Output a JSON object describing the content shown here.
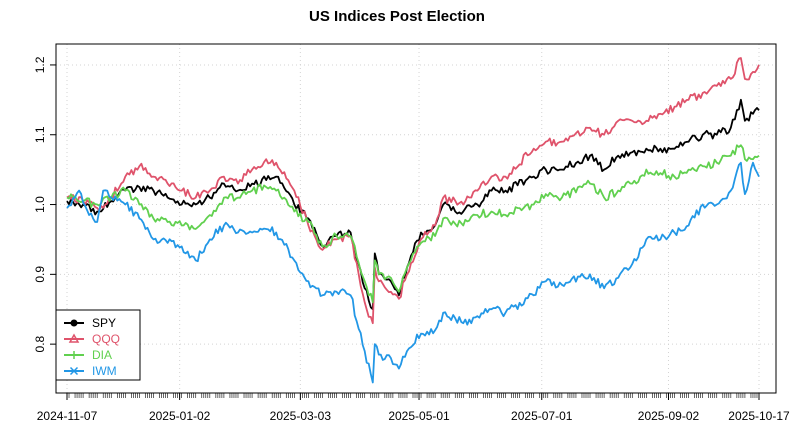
{
  "chart_data": {
    "type": "line",
    "title": "US Indices Post Election",
    "xlabel": "",
    "ylabel": "",
    "ylim": [
      0.73,
      1.23
    ],
    "grid": true,
    "legend_position": "bottom-left",
    "x_start": "2024-11-07",
    "x_end": "2025-10-17",
    "x_ticks": [
      "2024-11-07",
      "2025-01-02",
      "2025-03-03",
      "2025-05-01",
      "2025-07-01",
      "2025-09-02",
      "2025-10-17"
    ],
    "y_ticks": [
      0.8,
      0.9,
      1.0,
      1.1,
      1.2
    ],
    "y_tick_labels": [
      "0.8",
      "0.9",
      "1.0",
      "1.1",
      "1.2"
    ],
    "series": [
      {
        "name": "SPY",
        "color": "#000000",
        "marker": "circle",
        "points": [
          [
            "2024-11-07",
            1.005
          ],
          [
            "2024-11-15",
            1.0
          ],
          [
            "2024-11-22",
            0.99
          ],
          [
            "2024-11-29",
            1.005
          ],
          [
            "2024-12-06",
            1.02
          ],
          [
            "2024-12-13",
            1.025
          ],
          [
            "2024-12-20",
            1.02
          ],
          [
            "2024-12-27",
            1.01
          ],
          [
            "2025-01-03",
            1.0
          ],
          [
            "2025-01-10",
            1.0
          ],
          [
            "2025-01-17",
            1.01
          ],
          [
            "2025-01-24",
            1.03
          ],
          [
            "2025-01-31",
            1.02
          ],
          [
            "2025-02-07",
            1.03
          ],
          [
            "2025-02-14",
            1.035
          ],
          [
            "2025-02-19",
            1.04
          ],
          [
            "2025-02-28",
            1.0
          ],
          [
            "2025-03-07",
            0.98
          ],
          [
            "2025-03-14",
            0.94
          ],
          [
            "2025-03-21",
            0.955
          ],
          [
            "2025-03-28",
            0.96
          ],
          [
            "2025-04-04",
            0.88
          ],
          [
            "2025-04-08",
            0.85
          ],
          [
            "2025-04-09",
            0.93
          ],
          [
            "2025-04-11",
            0.9
          ],
          [
            "2025-04-17",
            0.89
          ],
          [
            "2025-04-21",
            0.87
          ],
          [
            "2025-04-25",
            0.91
          ],
          [
            "2025-05-02",
            0.96
          ],
          [
            "2025-05-09",
            0.97
          ],
          [
            "2025-05-13",
            1.0
          ],
          [
            "2025-05-23",
            0.99
          ],
          [
            "2025-05-30",
            1.0
          ],
          [
            "2025-06-06",
            1.02
          ],
          [
            "2025-06-13",
            1.02
          ],
          [
            "2025-06-27",
            1.04
          ],
          [
            "2025-07-03",
            1.05
          ],
          [
            "2025-07-11",
            1.05
          ],
          [
            "2025-07-25",
            1.07
          ],
          [
            "2025-08-01",
            1.05
          ],
          [
            "2025-08-08",
            1.07
          ],
          [
            "2025-08-15",
            1.075
          ],
          [
            "2025-08-22",
            1.08
          ],
          [
            "2025-08-29",
            1.08
          ],
          [
            "2025-09-05",
            1.08
          ],
          [
            "2025-09-12",
            1.09
          ],
          [
            "2025-09-19",
            1.1
          ],
          [
            "2025-09-26",
            1.1
          ],
          [
            "2025-10-03",
            1.11
          ],
          [
            "2025-10-08",
            1.15
          ],
          [
            "2025-10-10",
            1.12
          ],
          [
            "2025-10-14",
            1.13
          ],
          [
            "2025-10-17",
            1.135
          ]
        ]
      },
      {
        "name": "QQQ",
        "color": "#DF536B",
        "marker": "triangle",
        "points": [
          [
            "2024-11-07",
            1.01
          ],
          [
            "2024-11-15",
            1.005
          ],
          [
            "2024-11-22",
            0.995
          ],
          [
            "2024-11-29",
            1.01
          ],
          [
            "2024-12-06",
            1.04
          ],
          [
            "2024-12-13",
            1.055
          ],
          [
            "2024-12-20",
            1.04
          ],
          [
            "2024-12-27",
            1.03
          ],
          [
            "2025-01-03",
            1.02
          ],
          [
            "2025-01-10",
            1.01
          ],
          [
            "2025-01-17",
            1.02
          ],
          [
            "2025-01-24",
            1.04
          ],
          [
            "2025-01-31",
            1.03
          ],
          [
            "2025-02-07",
            1.05
          ],
          [
            "2025-02-14",
            1.065
          ],
          [
            "2025-02-19",
            1.06
          ],
          [
            "2025-02-28",
            1.02
          ],
          [
            "2025-03-07",
            0.97
          ],
          [
            "2025-03-14",
            0.935
          ],
          [
            "2025-03-21",
            0.95
          ],
          [
            "2025-03-28",
            0.955
          ],
          [
            "2025-04-04",
            0.86
          ],
          [
            "2025-04-08",
            0.83
          ],
          [
            "2025-04-09",
            0.91
          ],
          [
            "2025-04-11",
            0.89
          ],
          [
            "2025-04-17",
            0.875
          ],
          [
            "2025-04-21",
            0.865
          ],
          [
            "2025-04-25",
            0.9
          ],
          [
            "2025-05-02",
            0.95
          ],
          [
            "2025-05-09",
            0.97
          ],
          [
            "2025-05-13",
            1.01
          ],
          [
            "2025-05-23",
            1.0
          ],
          [
            "2025-05-30",
            1.02
          ],
          [
            "2025-06-06",
            1.04
          ],
          [
            "2025-06-13",
            1.04
          ],
          [
            "2025-06-27",
            1.08
          ],
          [
            "2025-07-03",
            1.09
          ],
          [
            "2025-07-11",
            1.09
          ],
          [
            "2025-07-25",
            1.11
          ],
          [
            "2025-08-01",
            1.1
          ],
          [
            "2025-08-08",
            1.12
          ],
          [
            "2025-08-15",
            1.12
          ],
          [
            "2025-08-22",
            1.12
          ],
          [
            "2025-08-29",
            1.13
          ],
          [
            "2025-09-05",
            1.14
          ],
          [
            "2025-09-12",
            1.15
          ],
          [
            "2025-09-19",
            1.16
          ],
          [
            "2025-09-26",
            1.17
          ],
          [
            "2025-10-03",
            1.18
          ],
          [
            "2025-10-08",
            1.21
          ],
          [
            "2025-10-10",
            1.18
          ],
          [
            "2025-10-14",
            1.19
          ],
          [
            "2025-10-17",
            1.2
          ]
        ]
      },
      {
        "name": "DIA",
        "color": "#61D04F",
        "marker": "plus",
        "points": [
          [
            "2024-11-07",
            1.01
          ],
          [
            "2024-11-15",
            1.005
          ],
          [
            "2024-11-22",
            1.0
          ],
          [
            "2024-11-29",
            1.01
          ],
          [
            "2024-12-06",
            1.02
          ],
          [
            "2024-12-13",
            1.0
          ],
          [
            "2024-12-20",
            0.98
          ],
          [
            "2024-12-27",
            0.975
          ],
          [
            "2025-01-03",
            0.97
          ],
          [
            "2025-01-10",
            0.965
          ],
          [
            "2025-01-17",
            0.985
          ],
          [
            "2025-01-24",
            1.01
          ],
          [
            "2025-01-31",
            1.01
          ],
          [
            "2025-02-07",
            1.02
          ],
          [
            "2025-02-14",
            1.025
          ],
          [
            "2025-02-19",
            1.02
          ],
          [
            "2025-02-28",
            0.99
          ],
          [
            "2025-03-07",
            0.975
          ],
          [
            "2025-03-14",
            0.94
          ],
          [
            "2025-03-21",
            0.955
          ],
          [
            "2025-03-28",
            0.955
          ],
          [
            "2025-04-04",
            0.89
          ],
          [
            "2025-04-08",
            0.86
          ],
          [
            "2025-04-09",
            0.92
          ],
          [
            "2025-04-11",
            0.9
          ],
          [
            "2025-04-17",
            0.895
          ],
          [
            "2025-04-21",
            0.875
          ],
          [
            "2025-04-25",
            0.91
          ],
          [
            "2025-05-02",
            0.945
          ],
          [
            "2025-05-09",
            0.955
          ],
          [
            "2025-05-13",
            0.98
          ],
          [
            "2025-05-23",
            0.97
          ],
          [
            "2025-05-30",
            0.985
          ],
          [
            "2025-06-06",
            0.99
          ],
          [
            "2025-06-13",
            0.985
          ],
          [
            "2025-06-27",
            1.0
          ],
          [
            "2025-07-03",
            1.015
          ],
          [
            "2025-07-11",
            1.01
          ],
          [
            "2025-07-25",
            1.03
          ],
          [
            "2025-08-01",
            1.01
          ],
          [
            "2025-08-08",
            1.02
          ],
          [
            "2025-08-15",
            1.03
          ],
          [
            "2025-08-22",
            1.05
          ],
          [
            "2025-08-29",
            1.045
          ],
          [
            "2025-09-05",
            1.04
          ],
          [
            "2025-09-12",
            1.05
          ],
          [
            "2025-09-19",
            1.055
          ],
          [
            "2025-09-26",
            1.06
          ],
          [
            "2025-10-03",
            1.07
          ],
          [
            "2025-10-08",
            1.085
          ],
          [
            "2025-10-10",
            1.065
          ],
          [
            "2025-10-14",
            1.065
          ],
          [
            "2025-10-17",
            1.07
          ]
        ]
      },
      {
        "name": "IWM",
        "color": "#2297E6",
        "marker": "cross",
        "points": [
          [
            "2024-11-07",
            0.995
          ],
          [
            "2024-11-13",
            1.02
          ],
          [
            "2024-11-18",
            0.985
          ],
          [
            "2024-11-22",
            0.975
          ],
          [
            "2024-11-25",
            1.02
          ],
          [
            "2024-11-29",
            1.01
          ],
          [
            "2024-12-06",
            1.0
          ],
          [
            "2024-12-13",
            0.98
          ],
          [
            "2024-12-20",
            0.95
          ],
          [
            "2024-12-27",
            0.945
          ],
          [
            "2025-01-03",
            0.94
          ],
          [
            "2025-01-10",
            0.92
          ],
          [
            "2025-01-17",
            0.95
          ],
          [
            "2025-01-24",
            0.97
          ],
          [
            "2025-01-31",
            0.96
          ],
          [
            "2025-02-07",
            0.96
          ],
          [
            "2025-02-14",
            0.965
          ],
          [
            "2025-02-19",
            0.96
          ],
          [
            "2025-02-28",
            0.92
          ],
          [
            "2025-03-07",
            0.89
          ],
          [
            "2025-03-14",
            0.87
          ],
          [
            "2025-03-21",
            0.875
          ],
          [
            "2025-03-28",
            0.87
          ],
          [
            "2025-04-04",
            0.79
          ],
          [
            "2025-04-08",
            0.745
          ],
          [
            "2025-04-09",
            0.8
          ],
          [
            "2025-04-11",
            0.785
          ],
          [
            "2025-04-17",
            0.78
          ],
          [
            "2025-04-21",
            0.765
          ],
          [
            "2025-04-25",
            0.79
          ],
          [
            "2025-05-02",
            0.815
          ],
          [
            "2025-05-09",
            0.82
          ],
          [
            "2025-05-13",
            0.845
          ],
          [
            "2025-05-23",
            0.83
          ],
          [
            "2025-05-30",
            0.84
          ],
          [
            "2025-06-06",
            0.85
          ],
          [
            "2025-06-13",
            0.845
          ],
          [
            "2025-06-27",
            0.87
          ],
          [
            "2025-07-03",
            0.89
          ],
          [
            "2025-07-11",
            0.885
          ],
          [
            "2025-07-25",
            0.9
          ],
          [
            "2025-08-01",
            0.88
          ],
          [
            "2025-08-08",
            0.895
          ],
          [
            "2025-08-15",
            0.915
          ],
          [
            "2025-08-22",
            0.95
          ],
          [
            "2025-08-29",
            0.95
          ],
          [
            "2025-09-05",
            0.96
          ],
          [
            "2025-09-12",
            0.97
          ],
          [
            "2025-09-19",
            1.0
          ],
          [
            "2025-09-26",
            1.0
          ],
          [
            "2025-10-03",
            1.02
          ],
          [
            "2025-10-08",
            1.06
          ],
          [
            "2025-10-10",
            1.015
          ],
          [
            "2025-10-14",
            1.06
          ],
          [
            "2025-10-17",
            1.04
          ]
        ]
      }
    ]
  }
}
